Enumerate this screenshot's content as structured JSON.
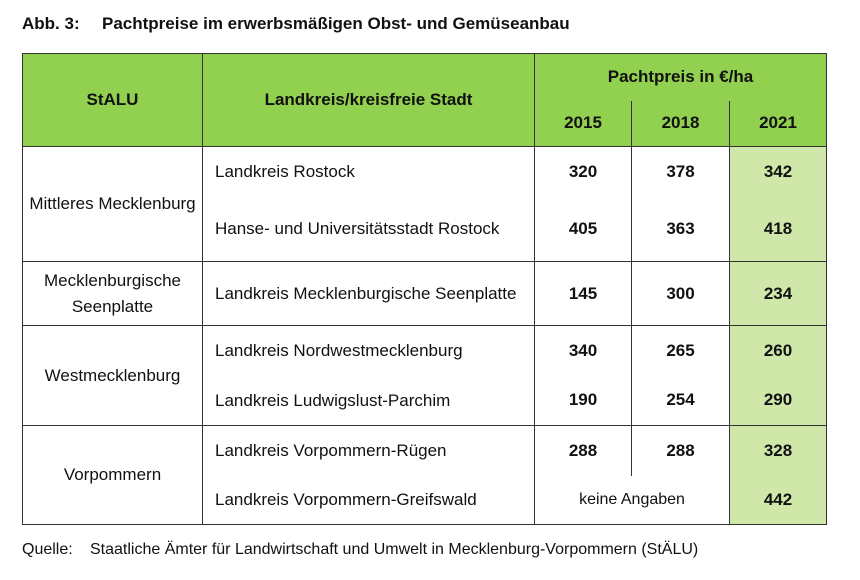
{
  "title": {
    "number": "Abb. 3:",
    "text": "Pachtpreise im erwerbsmäßigen Obst- und Gemüseanbau"
  },
  "table": {
    "headers": {
      "stalu": "StALU",
      "kreis": "Landkreis/kreisfreie Stadt",
      "price": "Pachtpreis in €/ha",
      "years": [
        "2015",
        "2018",
        "2021"
      ]
    },
    "groups": [
      {
        "stalu": "Mittleres Mecklenburg",
        "rows": [
          {
            "kreis": "Landkreis Rostock",
            "v2015": "320",
            "v2018": "378",
            "v2021": "342"
          },
          {
            "kreis": "Hanse- und Universitätsstadt Rostock",
            "v2015": "405",
            "v2018": "363",
            "v2021": "418"
          }
        ]
      },
      {
        "stalu": "Mecklenburgische Seenplatte",
        "rows": [
          {
            "kreis": "Landkreis Mecklenburgische Seenplatte",
            "v2015": "145",
            "v2018": "300",
            "v2021": "234"
          }
        ]
      },
      {
        "stalu": "Westmecklenburg",
        "rows": [
          {
            "kreis": "Landkreis Nordwestmecklenburg",
            "v2015": "340",
            "v2018": "265",
            "v2021": "260"
          },
          {
            "kreis": "Landkreis Ludwigslust-Parchim",
            "v2015": "190",
            "v2018": "254",
            "v2021": "290"
          }
        ]
      },
      {
        "stalu": "Vorpommern",
        "rows": [
          {
            "kreis": "Landkreis Vorpommern-Rügen",
            "v2015": "288",
            "v2018": "288",
            "v2021": "328"
          },
          {
            "kreis": "Landkreis Vorpommern-Greifswald",
            "na": "keine Angaben",
            "v2021": "442"
          }
        ]
      }
    ]
  },
  "source": {
    "label": "Quelle:",
    "text": "Staatliche Ämter für Landwirtschaft und Umwelt in Mecklenburg-Vorpommern (StÄLU)"
  },
  "colors": {
    "header_green": "#92d050",
    "highlight_green": "#cfe8aa",
    "border": "#333333"
  }
}
